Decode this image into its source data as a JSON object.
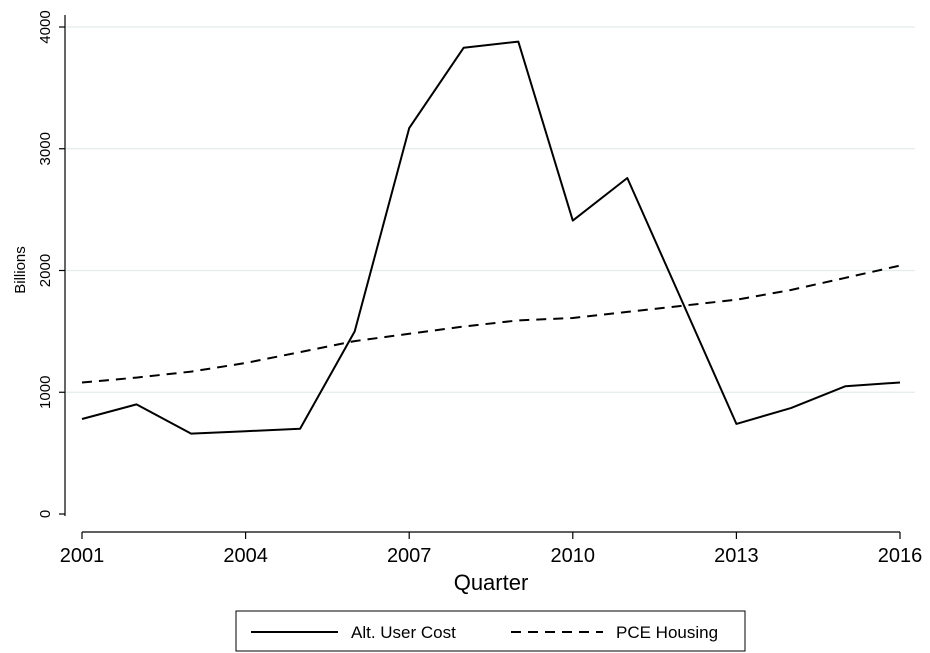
{
  "chart_data": {
    "type": "line",
    "title": "",
    "xlabel": "Quarter",
    "ylabel": "Billions",
    "x": [
      2001,
      2002,
      2003,
      2004,
      2005,
      2006,
      2007,
      2008,
      2009,
      2010,
      2011,
      2012,
      2013,
      2014,
      2015,
      2016
    ],
    "xlim": [
      2001,
      2016
    ],
    "ylim": [
      0,
      4000
    ],
    "x_ticks": [
      2001,
      2004,
      2007,
      2010,
      2013,
      2016
    ],
    "y_ticks": [
      0,
      1000,
      2000,
      3000,
      4000
    ],
    "grid": "horizontal",
    "legend_position": "bottom",
    "series": [
      {
        "name": "Alt. User Cost",
        "style": "solid",
        "color": "#000000",
        "values": [
          780,
          900,
          660,
          680,
          700,
          1500,
          3170,
          3830,
          3880,
          2410,
          2760,
          1750,
          740,
          870,
          1050,
          1080
        ]
      },
      {
        "name": "PCE Housing",
        "style": "dashed",
        "color": "#000000",
        "values": [
          1080,
          1120,
          1170,
          1240,
          1330,
          1420,
          1480,
          1540,
          1590,
          1610,
          1660,
          1710,
          1760,
          1840,
          1940,
          2040
        ]
      }
    ]
  }
}
